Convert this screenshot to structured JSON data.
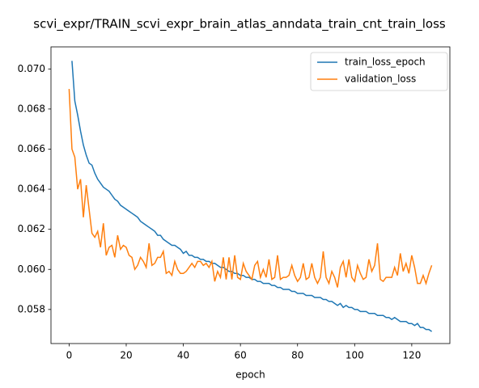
{
  "chart_data": {
    "type": "line",
    "title": "scvi_expr/TRAIN_scvi_expr_brain_atlas_anndata_train_cnt_train_loss",
    "x_label": "epoch",
    "x": [
      0,
      1,
      2,
      3,
      4,
      5,
      6,
      7,
      8,
      9,
      10,
      11,
      12,
      13,
      14,
      15,
      16,
      17,
      18,
      19,
      20,
      21,
      22,
      23,
      24,
      25,
      26,
      27,
      28,
      29,
      30,
      31,
      32,
      33,
      34,
      35,
      36,
      37,
      38,
      39,
      40,
      41,
      42,
      43,
      44,
      45,
      46,
      47,
      48,
      49,
      50,
      51,
      52,
      53,
      54,
      55,
      56,
      57,
      58,
      59,
      60,
      61,
      62,
      63,
      64,
      65,
      66,
      67,
      68,
      69,
      70,
      71,
      72,
      73,
      74,
      75,
      76,
      77,
      78,
      79,
      80,
      81,
      82,
      83,
      84,
      85,
      86,
      87,
      88,
      89,
      90,
      91,
      92,
      93,
      94,
      95,
      96,
      97,
      98,
      99,
      100,
      101,
      102,
      103,
      104,
      105,
      106,
      107,
      108,
      109,
      110,
      111,
      112,
      113,
      114,
      115,
      116,
      117,
      118,
      119,
      120,
      121,
      122,
      123,
      124,
      125,
      126,
      127
    ],
    "series": [
      {
        "name": "train_loss_epoch",
        "color": "#1f77b4",
        "values": [
          null,
          0.0704,
          0.0684,
          0.0677,
          0.0669,
          0.0662,
          0.0657,
          0.0653,
          0.0652,
          0.0648,
          0.0645,
          0.0643,
          0.0641,
          0.064,
          0.0639,
          0.0637,
          0.0635,
          0.0634,
          0.0632,
          0.0631,
          0.063,
          0.0629,
          0.0628,
          0.0627,
          0.0626,
          0.0624,
          0.0623,
          0.0622,
          0.0621,
          0.062,
          0.0619,
          0.0617,
          0.0617,
          0.0615,
          0.0614,
          0.0613,
          0.0612,
          0.0612,
          0.0611,
          0.061,
          0.0608,
          0.0609,
          0.0607,
          0.0607,
          0.0606,
          0.0606,
          0.0605,
          0.0605,
          0.0604,
          0.0604,
          0.0603,
          0.0603,
          0.0602,
          0.0601,
          0.0601,
          0.06,
          0.0599,
          0.0599,
          0.0598,
          0.0598,
          0.0597,
          0.0597,
          0.0596,
          0.0596,
          0.0595,
          0.0595,
          0.0594,
          0.0594,
          0.0593,
          0.0593,
          0.0593,
          0.0592,
          0.0592,
          0.0591,
          0.0591,
          0.059,
          0.059,
          0.059,
          0.0589,
          0.0589,
          0.0588,
          0.0588,
          0.0588,
          0.0587,
          0.0587,
          0.0587,
          0.0586,
          0.0586,
          0.0586,
          0.0585,
          0.0585,
          0.0584,
          0.0584,
          0.0583,
          0.0582,
          0.0583,
          0.0581,
          0.0582,
          0.0581,
          0.0581,
          0.058,
          0.058,
          0.0579,
          0.0579,
          0.0579,
          0.0578,
          0.0578,
          0.0578,
          0.0577,
          0.0577,
          0.0577,
          0.0576,
          0.0576,
          0.0575,
          0.0576,
          0.0575,
          0.0574,
          0.0574,
          0.0574,
          0.0573,
          0.0573,
          0.0572,
          0.0573,
          0.0571,
          0.0571,
          0.057,
          0.057,
          0.0569
        ]
      },
      {
        "name": "validation_loss",
        "color": "#ff7f0e",
        "values": [
          0.069,
          0.066,
          0.0656,
          0.064,
          0.0645,
          0.0626,
          0.0642,
          0.063,
          0.0618,
          0.0616,
          0.0619,
          0.0611,
          0.0623,
          0.0607,
          0.0611,
          0.0612,
          0.0606,
          0.0617,
          0.061,
          0.0612,
          0.0611,
          0.0607,
          0.0606,
          0.06,
          0.0602,
          0.0606,
          0.0604,
          0.0601,
          0.0613,
          0.0602,
          0.0603,
          0.0606,
          0.0606,
          0.0609,
          0.0598,
          0.0599,
          0.0597,
          0.0604,
          0.06,
          0.0598,
          0.0598,
          0.0599,
          0.0601,
          0.0603,
          0.0601,
          0.0604,
          0.0604,
          0.0602,
          0.0603,
          0.0601,
          0.0604,
          0.0594,
          0.0599,
          0.0596,
          0.0606,
          0.0595,
          0.0606,
          0.0595,
          0.0607,
          0.0596,
          0.0595,
          0.0603,
          0.0599,
          0.0597,
          0.0595,
          0.0602,
          0.0604,
          0.0596,
          0.06,
          0.0596,
          0.0605,
          0.0595,
          0.0596,
          0.0607,
          0.0595,
          0.0596,
          0.0596,
          0.0597,
          0.0602,
          0.0597,
          0.0594,
          0.0596,
          0.0603,
          0.0595,
          0.0596,
          0.0603,
          0.0596,
          0.0593,
          0.0596,
          0.0609,
          0.0596,
          0.0593,
          0.0599,
          0.0596,
          0.0591,
          0.0601,
          0.0604,
          0.0596,
          0.0605,
          0.0596,
          0.0594,
          0.0602,
          0.0598,
          0.0595,
          0.0596,
          0.0605,
          0.0599,
          0.0602,
          0.0613,
          0.0595,
          0.0594,
          0.0596,
          0.0596,
          0.0596,
          0.0601,
          0.0597,
          0.0608,
          0.0599,
          0.0603,
          0.0598,
          0.0607,
          0.0601,
          0.0593,
          0.0593,
          0.0597,
          0.0593,
          0.0598,
          0.0602
        ]
      }
    ],
    "xlim": [
      -6.35,
      133.35
    ],
    "xticks": [
      0,
      20,
      40,
      60,
      80,
      100,
      120
    ],
    "ylim": [
      0.0563,
      0.0711
    ],
    "yticks": [
      0.058,
      {
        "value": 0.06,
        "label": "0.060"
      },
      0.062,
      0.064,
      0.066,
      0.068,
      {
        "value": 0.07,
        "label": "0.070"
      }
    ],
    "legend": "upper right",
    "grid": false
  }
}
